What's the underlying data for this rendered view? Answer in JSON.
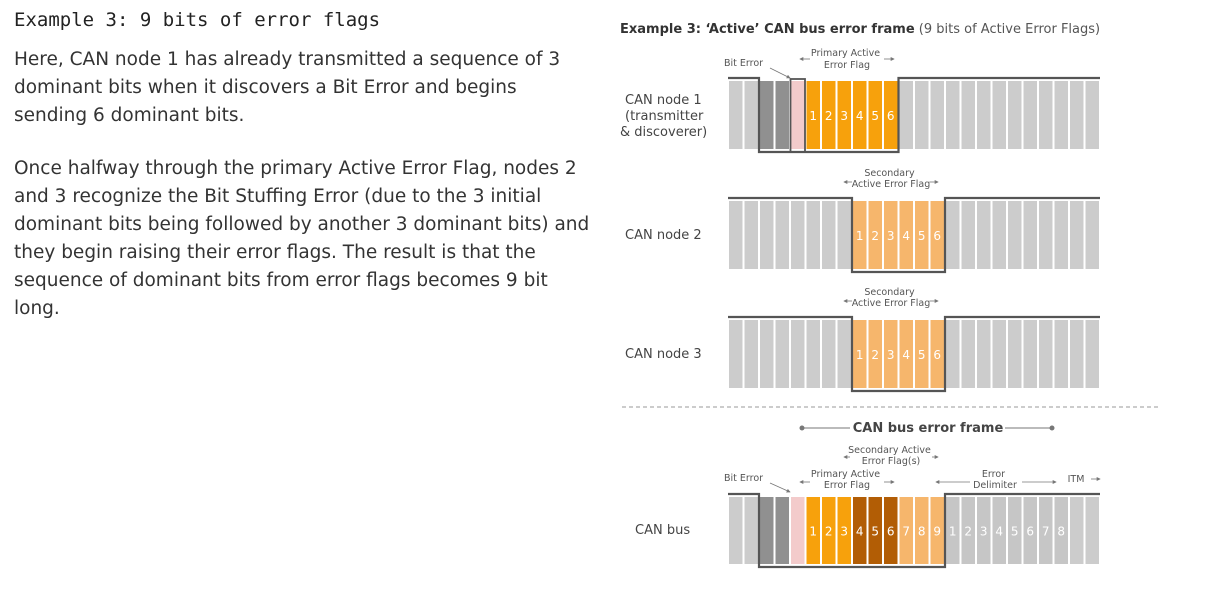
{
  "heading": "Example 3: 9 bits of error flags",
  "paragraph_1": "Here, CAN node 1 has already transmitted a sequence of 3 dominant bits when it discovers a Bit Error and begins sending 6 dominant bits.",
  "paragraph_2": "Once halfway through the primary Active Error Flag, nodes 2 and 3 recognize the Bit Stuffing Error (due to the 3 initial dominant bits being followed by another 3 dominant bits) and they begin raising their error flags. The result is that the sequence of dominant bits from error flags becomes 9 bit long.",
  "diagram": {
    "title_bold": "Example 3: ‘Active’ CAN bus error frame",
    "title_rest": " (9 bits of Active Error Flags)",
    "node1": {
      "label_lines": [
        "CAN node 1",
        "(transmitter",
        "& discoverer)"
      ],
      "bit_error_label": "Bit Error",
      "flag_label_lines": [
        "Primary Active",
        "Error Flag"
      ],
      "digits": [
        "1",
        "2",
        "3",
        "4",
        "5",
        "6"
      ]
    },
    "node2": {
      "label": "CAN node 2",
      "flag_label_lines": [
        "Secondary",
        "Active Error Flag"
      ],
      "digits": [
        "1",
        "2",
        "3",
        "4",
        "5",
        "6"
      ]
    },
    "node3": {
      "label": "CAN node 3",
      "flag_label_lines": [
        "Secondary",
        "Active Error Flag"
      ],
      "digits": [
        "1",
        "2",
        "3",
        "4",
        "5",
        "6"
      ]
    },
    "bus": {
      "frame_label": "CAN bus error frame",
      "label": "CAN bus",
      "bit_error_label": "Bit Error",
      "secondary_label_lines": [
        "Secondary Active",
        "Error Flag(s)"
      ],
      "primary_label_lines": [
        "Primary Active",
        "Error Flag"
      ],
      "delimiter_label_lines": [
        "Error",
        "Delimiter"
      ],
      "itm_label": "ITM",
      "flag_digits": [
        "1",
        "2",
        "3",
        "4",
        "5",
        "6",
        "7",
        "8",
        "9"
      ],
      "delimiter_digits": [
        "1",
        "2",
        "3",
        "4",
        "5",
        "6",
        "7",
        "8"
      ]
    },
    "colors": {
      "recessive": "#cccccc",
      "dominant_dark": "#909090",
      "bit_error": "#f3cbcb",
      "primary_flag": "#f7a10c",
      "secondary_flag": "#f6b66c",
      "overlap_flag": "#b25d05",
      "line": "#555555"
    }
  }
}
